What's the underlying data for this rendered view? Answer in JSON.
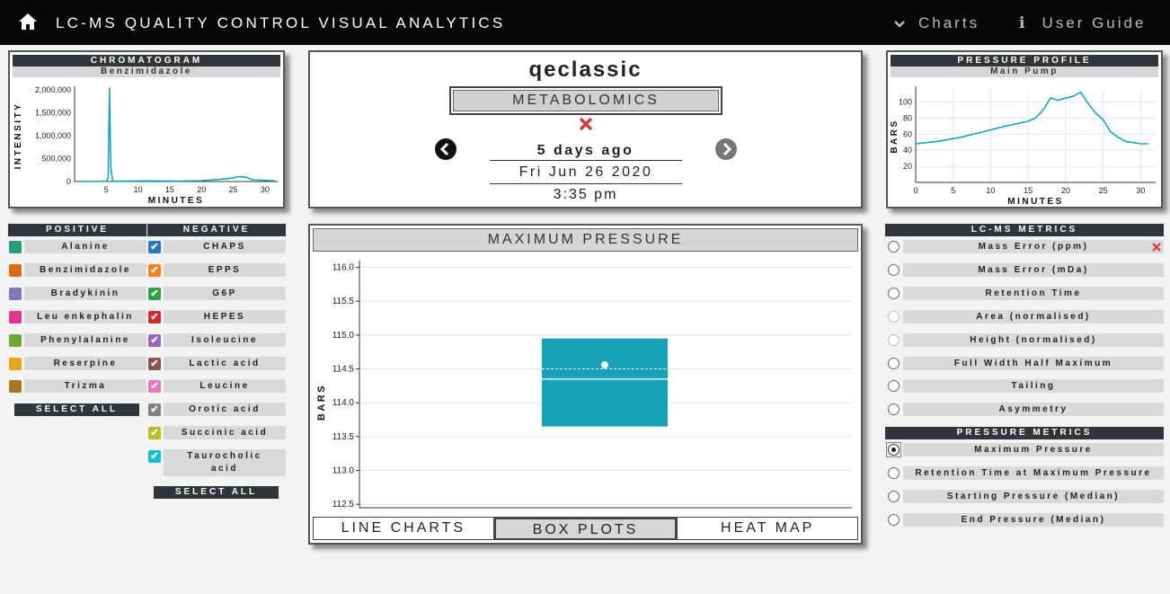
{
  "nav": {
    "title": "LC-MS QUALITY CONTROL VISUAL ANALYTICS",
    "charts": "Charts",
    "guide": "User Guide"
  },
  "chromatogram": {
    "title": "CHROMATOGRAM",
    "subtitle": "Benzimidazole",
    "xlabel": "MINUTES",
    "ylabel": "INTENSITY",
    "yticks": [
      "2,000,000",
      "1,500,000",
      "1,000,000",
      "500,000",
      "0"
    ],
    "xticks": [
      "5",
      "10",
      "15",
      "20",
      "25",
      "30"
    ]
  },
  "pressure_profile": {
    "title": "PRESSURE PROFILE",
    "subtitle": "Main Pump",
    "xlabel": "MINUTES",
    "ylabel": "BARS",
    "yticks": [
      "100",
      "80",
      "60",
      "40",
      "20"
    ],
    "xticks": [
      "0",
      "5",
      "10",
      "15",
      "20",
      "25",
      "30"
    ]
  },
  "run": {
    "instrument": "qeclassic",
    "type": "METABOLOMICS",
    "ago": "5 days ago",
    "date": "Fri Jun 26 2020",
    "time": "3:35 pm"
  },
  "positive": {
    "header": "POSITIVE",
    "items": [
      {
        "label": "Alanine",
        "color": "#2a9a7c"
      },
      {
        "label": "Benzimidazole",
        "color": "#e06a14"
      },
      {
        "label": "Bradykinin",
        "color": "#7f78ba"
      },
      {
        "label": "Leu enkephalin",
        "color": "#e0358c"
      },
      {
        "label": "Phenylalanine",
        "color": "#6ea82e"
      },
      {
        "label": "Reserpine",
        "color": "#e3a716"
      },
      {
        "label": "Trizma",
        "color": "#a77624"
      }
    ],
    "select_all": "SELECT ALL"
  },
  "negative": {
    "header": "NEGATIVE",
    "items": [
      {
        "label": "CHAPS",
        "color": "#2c77b8"
      },
      {
        "label": "EPPS",
        "color": "#f58220"
      },
      {
        "label": "G6P",
        "color": "#2fa14a"
      },
      {
        "label": "HEPES",
        "color": "#d6292b"
      },
      {
        "label": "Isoleucine",
        "color": "#9468bd"
      },
      {
        "label": "Lactic acid",
        "color": "#8c564b"
      },
      {
        "label": "Leucine",
        "color": "#e578c0"
      },
      {
        "label": "Orotic acid",
        "color": "#808080"
      },
      {
        "label": "Succinic acid",
        "color": "#bcbd22"
      },
      {
        "label": "Taurocholic acid",
        "color": "#17becf"
      }
    ],
    "select_all": "SELECT ALL"
  },
  "lcms_metrics": {
    "header": "LC-MS METRICS",
    "items": [
      "Mass Error (ppm)",
      "Mass Error (mDa)",
      "Retention Time",
      "Area (normalised)",
      "Height (normalised)",
      "Full Width Half Maximum",
      "Tailing",
      "Asymmetry"
    ]
  },
  "pressure_metrics": {
    "header": "PRESSURE METRICS",
    "items": [
      "Maximum Pressure",
      "Retention Time at Maximum Pressure",
      "Starting Pressure (Median)",
      "End Pressure (Median)"
    ],
    "selected": "Maximum Pressure"
  },
  "main_chart": {
    "title": "MAXIMUM PRESSURE",
    "tabs": [
      "LINE CHARTS",
      "BOX PLOTS",
      "HEAT MAP"
    ],
    "active_tab": "BOX PLOTS"
  },
  "chart_data": [
    {
      "type": "line",
      "title": "CHROMATOGRAM",
      "subtitle": "Benzimidazole",
      "xlabel": "MINUTES",
      "ylabel": "INTENSITY",
      "xlim": [
        0,
        32
      ],
      "ylim": [
        0,
        2000000
      ],
      "x": [
        0.5,
        5.0,
        5.3,
        5.5,
        5.7,
        6.0,
        8,
        12,
        16,
        20,
        22,
        24,
        25,
        26,
        27,
        28,
        31.5
      ],
      "y": [
        0,
        5000,
        80000,
        2050000,
        300000,
        10000,
        8000,
        15000,
        10000,
        20000,
        40000,
        60000,
        80000,
        110000,
        95000,
        40000,
        15000
      ],
      "color": "#1aa3b8"
    },
    {
      "type": "line",
      "title": "PRESSURE PROFILE",
      "subtitle": "Main Pump",
      "xlabel": "MINUTES",
      "ylabel": "BARS",
      "xlim": [
        0,
        32
      ],
      "ylim": [
        0,
        115
      ],
      "x": [
        0,
        3,
        6,
        9,
        12,
        15,
        16,
        17,
        18,
        19,
        20,
        21,
        22,
        23,
        24,
        25,
        26,
        27,
        28,
        30,
        31
      ],
      "y": [
        48,
        51,
        56,
        63,
        70,
        76,
        80,
        90,
        105,
        102,
        105,
        107,
        112,
        98,
        86,
        78,
        63,
        56,
        51,
        48,
        48
      ],
      "color": "#1aa3b8"
    },
    {
      "type": "box",
      "title": "MAXIMUM PRESSURE",
      "ylabel": "BARS",
      "ylim": [
        112.45,
        116.1
      ],
      "yticks": [
        112.5,
        113.0,
        113.5,
        114.0,
        114.5,
        115.0,
        115.5,
        116.0
      ],
      "q1": 113.65,
      "median": 114.35,
      "mean_line": 114.5,
      "q3": 114.95,
      "mean_point": 114.56,
      "color": "#17a2b8"
    }
  ]
}
